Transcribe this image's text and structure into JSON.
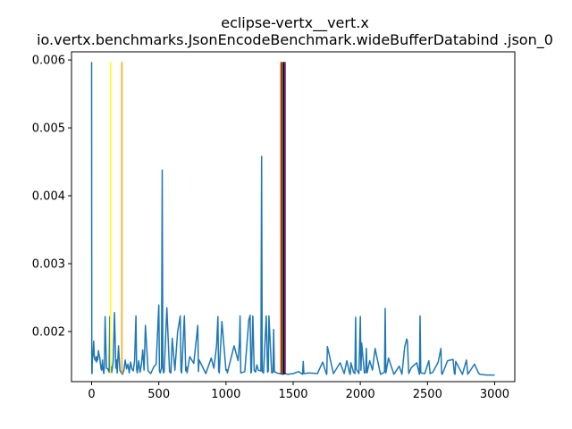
{
  "chart_data": {
    "type": "line",
    "title": "eclipse-vertx__vert.x",
    "subtitle": "io.vertx.benchmarks.JsonEncodeBenchmark.wideBufferDatabind .json_0",
    "xlabel": "",
    "ylabel": "",
    "xlim": [
      -150,
      3150
    ],
    "ylim": [
      0.001262,
      0.00612
    ],
    "x_ticks": [
      0,
      500,
      1000,
      1500,
      2000,
      2500,
      3000
    ],
    "y_ticks": [
      0.002,
      0.003,
      0.004,
      0.005,
      0.006
    ],
    "y_tick_labels": [
      "0.002",
      "0.003",
      "0.004",
      "0.005",
      "0.006"
    ],
    "grid": false,
    "legend": false,
    "line_color": "#1f77b4",
    "baseline": 0.00137,
    "series": [
      {
        "color": "#1f77b4",
        "x": [
          0,
          1,
          3,
          5,
          10,
          15,
          20,
          25,
          30,
          33,
          36,
          40,
          45,
          50,
          55,
          60,
          65,
          70,
          75,
          80,
          85,
          90,
          95,
          100,
          110,
          120,
          130,
          135,
          140,
          145,
          150,
          160,
          170,
          180,
          185,
          190,
          200,
          210,
          220,
          230,
          240,
          250,
          260,
          270,
          280,
          290,
          300,
          310,
          320,
          330,
          335,
          340,
          350,
          360,
          370,
          380,
          390,
          400,
          420,
          440,
          460,
          480,
          500,
          505,
          510,
          520,
          525,
          530,
          535,
          540,
          560,
          580,
          590,
          600,
          620,
          640,
          660,
          665,
          670,
          690,
          700,
          705,
          710,
          730,
          760,
          790,
          795,
          800,
          850,
          890,
          910,
          930,
          940,
          945,
          950,
          970,
          1000,
          1005,
          1010,
          1030,
          1060,
          1090,
          1100,
          1105,
          1110,
          1140,
          1170,
          1180,
          1185,
          1190,
          1200,
          1210,
          1220,
          1230,
          1240,
          1260,
          1265,
          1270,
          1280,
          1300,
          1310,
          1315,
          1320,
          1340,
          1350,
          1355,
          1360,
          1380,
          1400,
          1420,
          1440,
          1460,
          1500,
          1540,
          1570,
          1575,
          1580,
          1620,
          1680,
          1720,
          1745,
          1750,
          1755,
          1800,
          1850,
          1880,
          1900,
          1920,
          1925,
          1930,
          1950,
          1960,
          1965,
          1970,
          1990,
          2000,
          2005,
          2010,
          2030,
          2040,
          2045,
          2050,
          2070,
          2090,
          2110,
          2150,
          2180,
          2185,
          2190,
          2210,
          2250,
          2290,
          2310,
          2330,
          2345,
          2350,
          2360,
          2380,
          2420,
          2440,
          2445,
          2450,
          2480,
          2510,
          2520,
          2540,
          2580,
          2600,
          2605,
          2610,
          2650,
          2690,
          2700,
          2705,
          2710,
          2760,
          2790,
          2800,
          2850,
          2880,
          2890,
          2940,
          3000
        ],
        "values": [
          0.00597,
          0.0014,
          0.00138,
          0.00161,
          0.00165,
          0.00186,
          0.0016,
          0.00159,
          0.00157,
          0.00163,
          0.00155,
          0.00162,
          0.00158,
          0.00172,
          0.00166,
          0.00162,
          0.00153,
          0.00145,
          0.00143,
          0.00158,
          0.00146,
          0.00138,
          0.00148,
          0.00222,
          0.00146,
          0.00145,
          0.0014,
          0.00222,
          0.00142,
          0.00148,
          0.0014,
          0.00155,
          0.00228,
          0.00146,
          0.00158,
          0.00139,
          0.00179,
          0.00143,
          0.00139,
          0.00137,
          0.00143,
          0.00158,
          0.00145,
          0.00152,
          0.00139,
          0.00155,
          0.00145,
          0.00142,
          0.00157,
          0.00223,
          0.00144,
          0.00139,
          0.00157,
          0.0014,
          0.00151,
          0.00173,
          0.00143,
          0.00209,
          0.00142,
          0.00138,
          0.00147,
          0.00152,
          0.00239,
          0.00142,
          0.00139,
          0.00146,
          0.00438,
          0.00148,
          0.00139,
          0.00141,
          0.00235,
          0.00141,
          0.00139,
          0.0019,
          0.00143,
          0.00199,
          0.00223,
          0.00142,
          0.00139,
          0.00223,
          0.00142,
          0.00148,
          0.00139,
          0.00163,
          0.00153,
          0.00209,
          0.00141,
          0.00158,
          0.00138,
          0.00161,
          0.00146,
          0.00179,
          0.00222,
          0.00142,
          0.00139,
          0.00215,
          0.00143,
          0.00144,
          0.00139,
          0.00155,
          0.00179,
          0.00157,
          0.00184,
          0.00223,
          0.00139,
          0.00141,
          0.00217,
          0.00224,
          0.00139,
          0.00141,
          0.00223,
          0.00143,
          0.0014,
          0.00151,
          0.00143,
          0.00142,
          0.00458,
          0.00141,
          0.00139,
          0.00223,
          0.0014,
          0.00142,
          0.00223,
          0.00139,
          0.0014,
          0.00203,
          0.00141,
          0.00139,
          0.00138,
          0.00137,
          0.00138,
          0.00137,
          0.00138,
          0.00141,
          0.00137,
          0.00156,
          0.00138,
          0.00139,
          0.00138,
          0.00155,
          0.00139,
          0.00137,
          0.00178,
          0.00138,
          0.00154,
          0.00138,
          0.00157,
          0.00139,
          0.00137,
          0.00154,
          0.0014,
          0.00138,
          0.00221,
          0.00145,
          0.00138,
          0.00222,
          0.00143,
          0.00183,
          0.00139,
          0.0014,
          0.00175,
          0.00139,
          0.00157,
          0.00143,
          0.00175,
          0.00137,
          0.0014,
          0.00234,
          0.00139,
          0.00161,
          0.00137,
          0.00149,
          0.00137,
          0.00177,
          0.00189,
          0.00186,
          0.00138,
          0.00147,
          0.00154,
          0.00137,
          0.00223,
          0.00139,
          0.00138,
          0.00157,
          0.00138,
          0.0014,
          0.00155,
          0.00175,
          0.00139,
          0.00137,
          0.00157,
          0.00159,
          0.00138,
          0.00137,
          0.00156,
          0.00137,
          0.00158,
          0.00137,
          0.00152,
          0.00139,
          0.00137,
          0.00136,
          0.00136
        ]
      }
    ],
    "vertical_lines": [
      {
        "x": 140,
        "color": "#ffff00",
        "y_from": 0.00137,
        "y_to": 0.00597
      },
      {
        "x": 225,
        "color": "#ffa500",
        "y_from": 0.00137,
        "y_to": 0.00597
      },
      {
        "x": 1410,
        "color": "#ff0000",
        "y_from": 0.00137,
        "y_to": 0.00597
      },
      {
        "x": 1420,
        "color": "#008000",
        "y_from": 0.00137,
        "y_to": 0.00597
      },
      {
        "x": 1430,
        "color": "#000000",
        "y_from": 0.00137,
        "y_to": 0.00597
      },
      {
        "x": 1440,
        "color": "#800080",
        "y_from": 0.00137,
        "y_to": 0.00597
      }
    ]
  }
}
